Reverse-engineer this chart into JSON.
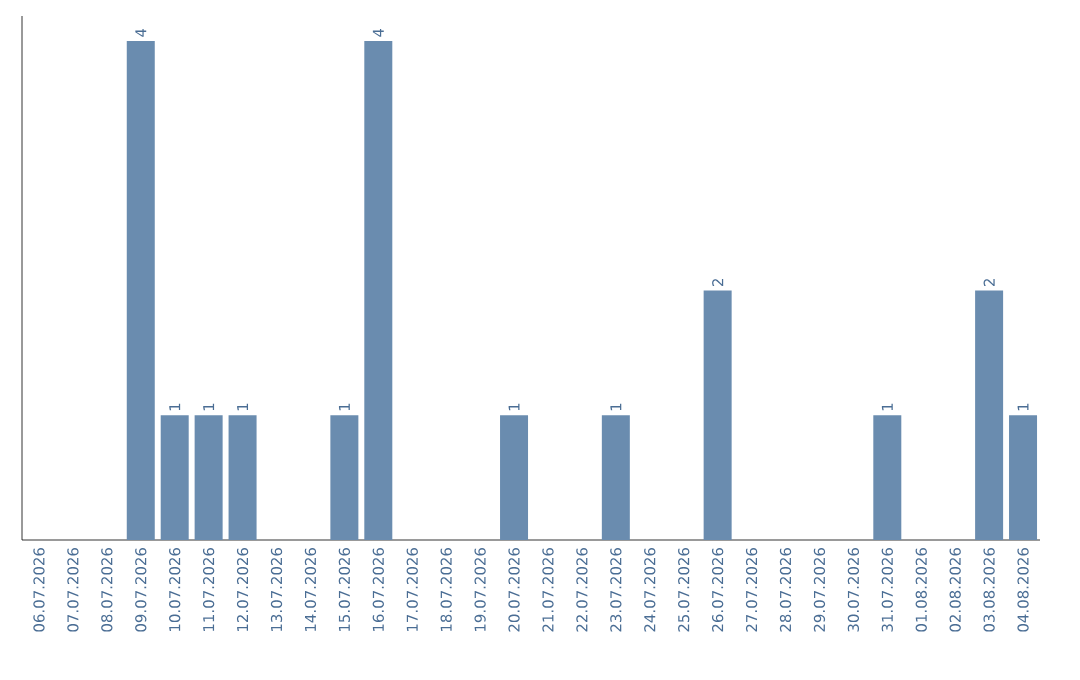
{
  "chart_data": {
    "type": "bar",
    "categories": [
      "06.07.2026",
      "07.07.2026",
      "08.07.2026",
      "09.07.2026",
      "10.07.2026",
      "11.07.2026",
      "12.07.2026",
      "13.07.2026",
      "14.07.2026",
      "15.07.2026",
      "16.07.2026",
      "17.07.2026",
      "18.07.2026",
      "19.07.2026",
      "20.07.2026",
      "21.07.2026",
      "22.07.2026",
      "23.07.2026",
      "24.07.2026",
      "25.07.2026",
      "26.07.2026",
      "27.07.2026",
      "28.07.2026",
      "29.07.2026",
      "30.07.2026",
      "31.07.2026",
      "01.08.2026",
      "02.08.2026",
      "03.08.2026",
      "04.08.2026"
    ],
    "values": [
      0,
      0,
      0,
      4,
      1,
      1,
      1,
      0,
      0,
      1,
      4,
      0,
      0,
      0,
      1,
      0,
      0,
      1,
      0,
      0,
      2,
      0,
      0,
      0,
      0,
      1,
      0,
      0,
      2,
      1
    ],
    "value_labels": [
      null,
      null,
      null,
      "4",
      "1",
      "1",
      "1",
      null,
      null,
      "1",
      "4",
      null,
      null,
      null,
      "1",
      null,
      null,
      "1",
      null,
      null,
      "2",
      null,
      null,
      null,
      null,
      "1",
      null,
      null,
      "2",
      "1"
    ],
    "color": "#6a8caf",
    "ylim": [
      0,
      4.2
    ],
    "tick_labels": "x",
    "grid": false
  }
}
